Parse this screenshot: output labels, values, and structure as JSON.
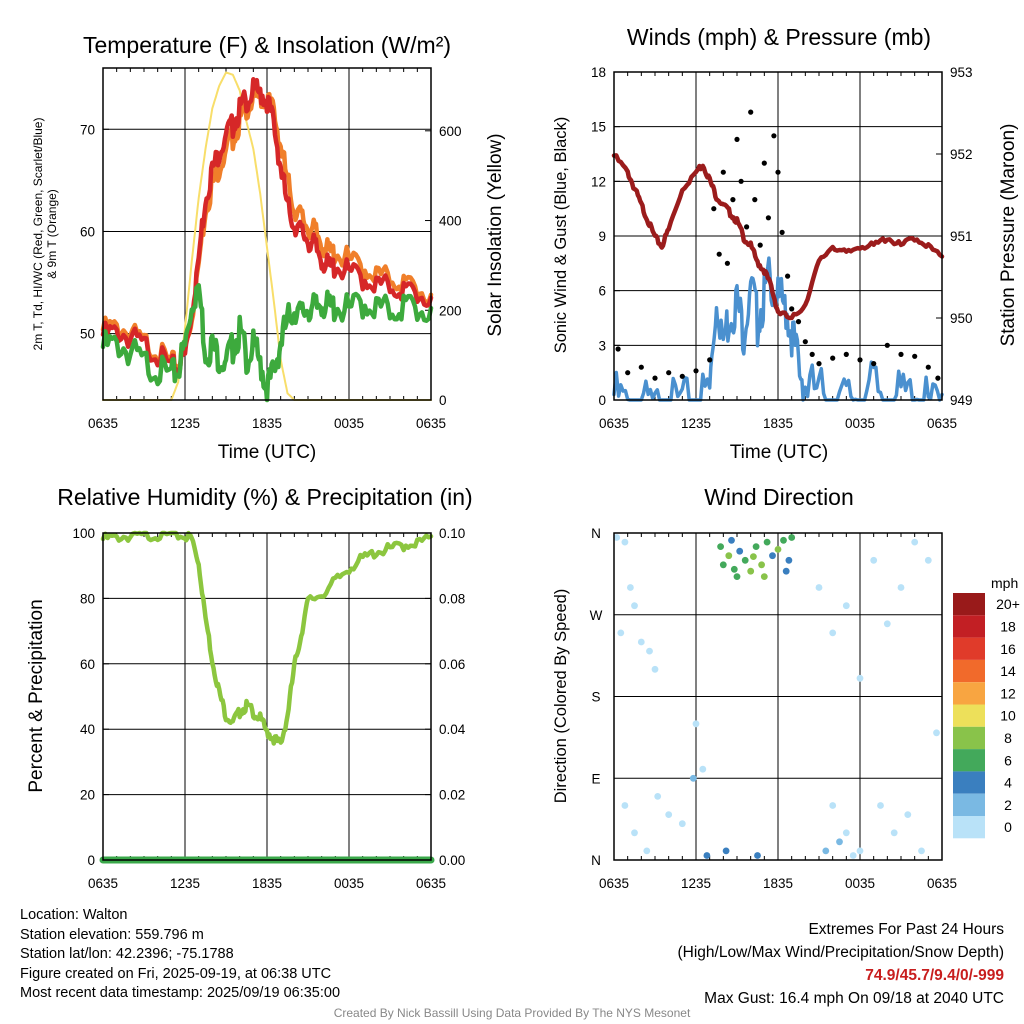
{
  "chart_data": [
    {
      "type": "line",
      "title": "Temperature (F) & Insolation (W/m²)",
      "xlabel": "Time (UTC)",
      "ylabel": "2m T, Td, HI/WC (Red, Green, Scarlet/Blue) & 9m T (Orange)",
      "ylabel_line1": "2m T, Td, HI/WC (Red, Green, Scarlet/Blue)",
      "ylabel_line2": "& 9m T (Orange)",
      "y2label": "Solar Insolation (Yellow)",
      "x_ticks": [
        "0635",
        "1235",
        "1835",
        "0035",
        "0635"
      ],
      "x_range_hours": [
        0,
        24
      ],
      "ylim": [
        43.5,
        76
      ],
      "y_ticks": [
        50,
        60,
        70
      ],
      "y2lim": [
        0,
        740
      ],
      "y2_ticks": [
        0,
        200,
        400,
        600
      ],
      "colors": {
        "temp_2m": "#d62728",
        "temp_9m": "#f07f2a",
        "dewpoint": "#3daa3d",
        "insolation": "#f8de6a"
      },
      "series": [
        {
          "key": "temp_2m",
          "x": [
            0,
            1,
            2,
            3,
            4,
            5,
            5.5,
            6,
            6.5,
            7,
            7.5,
            8,
            8.5,
            9,
            9.5,
            10,
            10.5,
            11,
            11.5,
            12,
            12.5,
            13,
            13.5,
            14,
            14.5,
            15,
            15.5,
            16,
            16.5,
            17,
            18,
            19,
            20,
            21,
            22,
            23,
            24
          ],
          "values": [
            50.5,
            50.8,
            50.2,
            49.5,
            48.5,
            47.2,
            47.5,
            48.5,
            53,
            58,
            64,
            66.5,
            68.5,
            70,
            71,
            72.5,
            73.5,
            74.3,
            74.2,
            73.5,
            71,
            67,
            63,
            61.5,
            60.5,
            59.8,
            59,
            58,
            57,
            57.2,
            56.6,
            56,
            55.5,
            55.2,
            54.8,
            54.5,
            53.5
          ]
        },
        {
          "key": "temp_9m",
          "x": [
            0,
            1,
            2,
            3,
            4,
            5,
            5.5,
            6,
            6.5,
            7,
            7.5,
            8,
            8.5,
            9,
            9.5,
            10,
            10.5,
            11,
            11.5,
            12,
            12.5,
            13,
            13.5,
            14,
            14.5,
            15,
            15.5,
            16,
            16.5,
            17,
            18,
            19,
            20,
            21,
            22,
            23,
            24
          ],
          "values": [
            51,
            51.3,
            50.6,
            49.8,
            48.8,
            47.6,
            47.8,
            48.8,
            52.5,
            57.5,
            63,
            65,
            67,
            68.5,
            69.8,
            71.3,
            72.8,
            73.5,
            73.8,
            73.5,
            72.2,
            69,
            65.5,
            63,
            62,
            61,
            60.5,
            59.5,
            58.5,
            58.5,
            57.8,
            57,
            56.5,
            56,
            55.5,
            55,
            53.8
          ]
        },
        {
          "key": "dewpoint",
          "x": [
            0,
            1,
            2,
            3,
            4,
            5,
            5.5,
            6,
            6.5,
            7,
            7.5,
            8,
            8.5,
            9,
            9.5,
            10,
            10.5,
            11,
            11.5,
            12,
            12.5,
            13,
            13.5,
            14,
            14.5,
            15,
            15.5,
            16,
            16.5,
            17,
            18,
            19,
            20,
            21,
            22,
            23,
            24
          ],
          "values": [
            49.5,
            49.8,
            49,
            48,
            47.2,
            46.5,
            47.5,
            49.5,
            54,
            55.5,
            49,
            49.5,
            48.5,
            48,
            49.5,
            51,
            48.5,
            49.5,
            48,
            45.5,
            47,
            50,
            52,
            53.5,
            52.5,
            53.5,
            53,
            54,
            53.2,
            53.5,
            53,
            53.8,
            53.5,
            53,
            53.5,
            53.2,
            52.5
          ]
        },
        {
          "key": "insolation",
          "x": [
            0,
            1,
            2,
            3,
            4,
            5,
            5.5,
            6,
            6.5,
            7,
            7.5,
            8,
            8.5,
            9,
            9.5,
            10,
            10.5,
            11,
            11.5,
            12,
            12.5,
            13,
            13.5,
            14,
            14.5,
            15,
            15.5,
            16,
            17,
            18,
            19,
            20,
            21,
            22,
            23,
            24
          ],
          "values": [
            0,
            0,
            0,
            0,
            0,
            0,
            40,
            160,
            310,
            450,
            560,
            650,
            700,
            730,
            725,
            690,
            620,
            560,
            460,
            340,
            220,
            90,
            15,
            0,
            0,
            0,
            0,
            0,
            0,
            0,
            0,
            0,
            0,
            0,
            0,
            0
          ]
        }
      ]
    },
    {
      "type": "scatter",
      "title": "Winds (mph) & Pressure (mb)",
      "xlabel": "Time (UTC)",
      "ylabel": "Sonic Wind & Gust (Blue, Black)",
      "y2label": "Station Pressure (Maroon)",
      "x_ticks": [
        "0635",
        "1235",
        "1835",
        "0035",
        "0635"
      ],
      "ylim": [
        0,
        18
      ],
      "y_ticks": [
        0,
        3,
        6,
        9,
        12,
        15,
        18
      ],
      "y2lim": [
        949,
        953
      ],
      "y2_ticks": [
        949,
        950,
        951,
        952,
        953
      ],
      "colors": {
        "wind": "#4a90cf",
        "gust": "#000000",
        "pressure": "#9b1c1c"
      },
      "series": [
        {
          "key": "wind",
          "x": [
            0,
            1,
            2,
            3,
            4,
            5,
            6,
            7,
            7.5,
            8,
            8.5,
            9,
            9.5,
            10,
            10.5,
            11,
            11.5,
            12,
            12.5,
            13,
            13.5,
            14,
            15,
            16,
            17,
            18,
            19,
            20,
            21,
            22,
            23,
            24
          ],
          "values": [
            1,
            0.5,
            0.5,
            0.3,
            0.5,
            0.5,
            0.8,
            1.2,
            6.5,
            4,
            5.5,
            6,
            4.5,
            7,
            5,
            6.5,
            7.5,
            6,
            6,
            4.5,
            2.5,
            1.5,
            1.2,
            1,
            0.8,
            1,
            1.5,
            0.5,
            1,
            1,
            0.5,
            0.3
          ]
        },
        {
          "key": "gust",
          "x": [
            0.3,
            1,
            2,
            3,
            4,
            5,
            6,
            7,
            7.3,
            7.7,
            8,
            8.3,
            8.7,
            9,
            9.3,
            9.7,
            10,
            10.3,
            10.7,
            11,
            11.3,
            11.7,
            12,
            12.3,
            12.7,
            13,
            13.5,
            14,
            14.5,
            15,
            16,
            17,
            18,
            19,
            20,
            21,
            22,
            23,
            23.7
          ],
          "values": [
            2.8,
            1.5,
            1.8,
            1.2,
            1.5,
            1.3,
            1.6,
            2.2,
            10.5,
            8,
            12.5,
            7.5,
            11,
            14.3,
            12,
            9.5,
            15.8,
            11,
            8.5,
            13,
            10,
            14.5,
            12.5,
            9.2,
            6.8,
            5,
            4.3,
            3.2,
            2.5,
            2,
            2.3,
            2.5,
            2.2,
            2,
            3,
            2.5,
            2.4,
            1.8,
            1.2
          ]
        },
        {
          "key": "pressure",
          "x": [
            0,
            1,
            1.5,
            2,
            2.5,
            3,
            3.5,
            4,
            5,
            6,
            6.5,
            7,
            7.5,
            8,
            8.5,
            9,
            9.5,
            10,
            10.5,
            11,
            11.5,
            12,
            13,
            14,
            15,
            16,
            17,
            18,
            19,
            20,
            21,
            22,
            23,
            24
          ],
          "values": [
            952,
            951.8,
            951.6,
            951.4,
            951.2,
            951,
            950.9,
            951.1,
            951.6,
            951.8,
            951.9,
            951.7,
            951.5,
            951.4,
            951.3,
            951.2,
            951,
            950.9,
            950.7,
            950.6,
            950.4,
            950.1,
            950,
            950.2,
            950.7,
            950.9,
            950.8,
            950.9,
            950.9,
            951,
            950.9,
            951,
            950.9,
            950.75
          ]
        }
      ]
    },
    {
      "type": "line",
      "title": "Relative Humidity (%) & Precipitation (in)",
      "ylabel": "Percent & Precipitation",
      "x_ticks": [
        "0635",
        "1235",
        "1835",
        "0035",
        "0635"
      ],
      "ylim": [
        0,
        100
      ],
      "y_ticks": [
        0,
        20,
        40,
        60,
        80,
        100
      ],
      "y2lim": [
        0,
        0.1
      ],
      "y2_ticks": [
        "0.00",
        "0.02",
        "0.04",
        "0.06",
        "0.08",
        "0.10"
      ],
      "colors": {
        "humidity": "#8cc63f",
        "precip": "#3aa84a"
      },
      "series": [
        {
          "key": "humidity",
          "x": [
            0,
            1,
            2,
            3,
            4,
            5,
            6,
            6.5,
            7,
            7.5,
            8,
            8.5,
            9,
            9.5,
            10,
            10.5,
            11,
            11.5,
            12,
            12.5,
            13,
            13.5,
            14,
            14.5,
            15,
            16,
            17,
            18,
            19,
            20,
            21,
            22,
            23,
            24
          ],
          "values": [
            99,
            99.5,
            99.8,
            100,
            100,
            100,
            100,
            99,
            92,
            75,
            62,
            52,
            45,
            43,
            46,
            48,
            46,
            44,
            40,
            38,
            36,
            45,
            60,
            70,
            80,
            82,
            86,
            90,
            93,
            95,
            96,
            97,
            98,
            99
          ]
        },
        {
          "key": "precip",
          "x": [
            0,
            24
          ],
          "values": [
            0,
            0
          ]
        }
      ]
    },
    {
      "type": "scatter",
      "title": "Wind Direction",
      "ylabel": "Direction (Colored By Speed)",
      "x_ticks": [
        "0635",
        "1235",
        "1835",
        "0035",
        "0635"
      ],
      "y_ticks": [
        "N",
        "E",
        "S",
        "W",
        "N"
      ],
      "ylim": [
        0,
        360
      ],
      "colorbar": {
        "unit": "mph",
        "labels": [
          "20+",
          "18",
          "16",
          "14",
          "12",
          "10",
          "8",
          "6",
          "4",
          "2",
          "0"
        ],
        "colors": [
          "#991a1a",
          "#c21f24",
          "#e03b2a",
          "#f16a2b",
          "#f8a541",
          "#ede05a",
          "#89c34a",
          "#43a95b",
          "#3a7fbf",
          "#7ab9e3",
          "#b9e2f8"
        ]
      },
      "points": [
        {
          "x": 0.2,
          "dir": 355,
          "speed": 0.5
        },
        {
          "x": 0.8,
          "dir": 350,
          "speed": 0.5
        },
        {
          "x": 1.2,
          "dir": 300,
          "speed": 1
        },
        {
          "x": 0.5,
          "dir": 250,
          "speed": 0.5
        },
        {
          "x": 1.5,
          "dir": 280,
          "speed": 1
        },
        {
          "x": 2.0,
          "dir": 240,
          "speed": 1
        },
        {
          "x": 2.6,
          "dir": 230,
          "speed": 1
        },
        {
          "x": 3.0,
          "dir": 210,
          "speed": 0.5
        },
        {
          "x": 0.8,
          "dir": 60,
          "speed": 1
        },
        {
          "x": 1.5,
          "dir": 30,
          "speed": 1
        },
        {
          "x": 2.4,
          "dir": 10,
          "speed": 0.5
        },
        {
          "x": 3.2,
          "dir": 70,
          "speed": 1
        },
        {
          "x": 4.0,
          "dir": 50,
          "speed": 1
        },
        {
          "x": 5.0,
          "dir": 40,
          "speed": 0.5
        },
        {
          "x": 5.8,
          "dir": 90,
          "speed": 2
        },
        {
          "x": 6.0,
          "dir": 150,
          "speed": 1
        },
        {
          "x": 6.5,
          "dir": 100,
          "speed": 1
        },
        {
          "x": 6.8,
          "dir": 5,
          "speed": 4
        },
        {
          "x": 8.2,
          "dir": 10,
          "speed": 4
        },
        {
          "x": 10.5,
          "dir": 5,
          "speed": 4
        },
        {
          "x": 7.8,
          "dir": 345,
          "speed": 6
        },
        {
          "x": 8.4,
          "dir": 335,
          "speed": 8
        },
        {
          "x": 8.8,
          "dir": 320,
          "speed": 7
        },
        {
          "x": 9.2,
          "dir": 340,
          "speed": 4
        },
        {
          "x": 9.6,
          "dir": 330,
          "speed": 6
        },
        {
          "x": 10.0,
          "dir": 318,
          "speed": 8
        },
        {
          "x": 10.4,
          "dir": 345,
          "speed": 6
        },
        {
          "x": 10.8,
          "dir": 325,
          "speed": 9
        },
        {
          "x": 11.2,
          "dir": 350,
          "speed": 7
        },
        {
          "x": 11.6,
          "dir": 335,
          "speed": 4
        },
        {
          "x": 12.0,
          "dir": 342,
          "speed": 8
        },
        {
          "x": 12.4,
          "dir": 352,
          "speed": 6
        },
        {
          "x": 12.8,
          "dir": 330,
          "speed": 4
        },
        {
          "x": 8.0,
          "dir": 325,
          "speed": 6
        },
        {
          "x": 9.0,
          "dir": 312,
          "speed": 6
        },
        {
          "x": 10.2,
          "dir": 334,
          "speed": 8
        },
        {
          "x": 11.0,
          "dir": 312,
          "speed": 8
        },
        {
          "x": 12.6,
          "dir": 318,
          "speed": 4
        },
        {
          "x": 13.0,
          "dir": 355,
          "speed": 6
        },
        {
          "x": 8.6,
          "dir": 352,
          "speed": 4
        },
        {
          "x": 15.0,
          "dir": 300,
          "speed": 1
        },
        {
          "x": 16.0,
          "dir": 250,
          "speed": 1
        },
        {
          "x": 17.0,
          "dir": 280,
          "speed": 1
        },
        {
          "x": 18.0,
          "dir": 200,
          "speed": 1
        },
        {
          "x": 19.0,
          "dir": 330,
          "speed": 1
        },
        {
          "x": 20.0,
          "dir": 260,
          "speed": 1
        },
        {
          "x": 21.0,
          "dir": 300,
          "speed": 1
        },
        {
          "x": 22.0,
          "dir": 350,
          "speed": 1
        },
        {
          "x": 23.0,
          "dir": 330,
          "speed": 0.5
        },
        {
          "x": 23.6,
          "dir": 140,
          "speed": 1
        },
        {
          "x": 16.0,
          "dir": 60,
          "speed": 1
        },
        {
          "x": 17.0,
          "dir": 30,
          "speed": 1
        },
        {
          "x": 18.0,
          "dir": 10,
          "speed": 0.5
        },
        {
          "x": 19.5,
          "dir": 60,
          "speed": 1
        },
        {
          "x": 20.5,
          "dir": 30,
          "speed": 1
        },
        {
          "x": 21.5,
          "dir": 50,
          "speed": 1
        },
        {
          "x": 22.5,
          "dir": 10,
          "speed": 0.5
        },
        {
          "x": 16.5,
          "dir": 20,
          "speed": 2
        },
        {
          "x": 15.5,
          "dir": 10,
          "speed": 2
        },
        {
          "x": 17.5,
          "dir": 5,
          "speed": 1
        }
      ]
    }
  ],
  "footer": {
    "location": "Location: Walton",
    "elevation": "Station elevation: 559.796 m",
    "latlon": "Station lat/lon: 42.2396; -75.1788",
    "created": "Figure created on Fri, 2025-09-19, at 06:38 UTC",
    "recent": "Most recent data timestamp: 2025/09/19 06:35:00",
    "extremes_title": "Extremes For Past 24 Hours",
    "extremes_legend": "(High/Low/Max Wind/Precipitation/Snow Depth)",
    "extremes_values": "74.9/45.7/9.4/0/-999",
    "max_gust": "Max Gust: 16.4 mph On 09/18 at 2040 UTC",
    "credit": "Created By Nick Bassill Using Data Provided By The NYS Mesonet"
  }
}
